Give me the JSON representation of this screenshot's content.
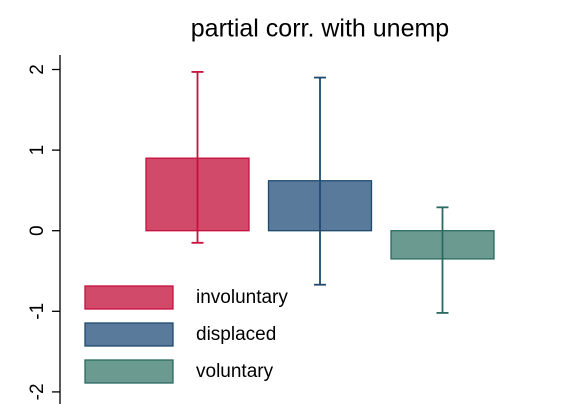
{
  "chart_data": {
    "type": "bar",
    "title": "partial corr. with unemp",
    "series": [
      {
        "name": "involuntary",
        "color": "#d24a6a",
        "edge_color": "#c8103e",
        "values": [
          0.9
        ],
        "ci_low": [
          -0.15
        ],
        "ci_high": [
          1.97
        ]
      },
      {
        "name": "displaced",
        "color": "#5a7a9c",
        "edge_color": "#1e4a6e",
        "values": [
          0.62
        ],
        "ci_low": [
          -0.67
        ],
        "ci_high": [
          1.9
        ]
      },
      {
        "name": "voluntary",
        "color": "#6a9a90",
        "edge_color": "#2a6a60",
        "values": [
          -0.35
        ],
        "ci_low": [
          -1.02
        ],
        "ci_high": [
          0.29
        ]
      }
    ],
    "ylim": [
      -2.15,
      2.18
    ],
    "yticks": [
      -2,
      -1,
      0,
      1,
      2
    ],
    "grid": false,
    "legend": "lower left"
  }
}
